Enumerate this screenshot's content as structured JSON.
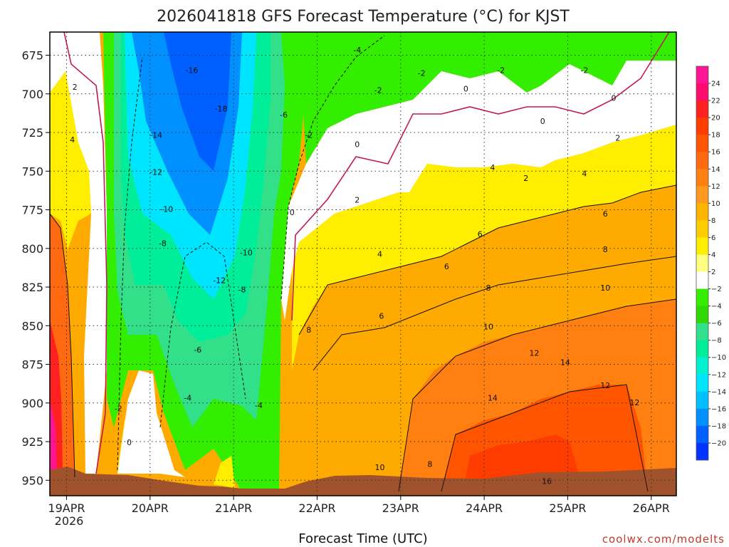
{
  "chart_data": {
    "type": "heatmap",
    "title": "2026041818 GFS Forecast Temperature (°C) for KJST",
    "xlabel": "Forecast Time (UTC)",
    "ylabel": "",
    "credit": "coolwx.com/modelts",
    "x_ticks": [
      "19APR",
      "20APR",
      "21APR",
      "22APR",
      "23APR",
      "24APR",
      "25APR",
      "26APR"
    ],
    "x_year": "2026",
    "y_ticks": [
      675,
      700,
      725,
      750,
      775,
      800,
      825,
      850,
      875,
      900,
      925,
      950
    ],
    "y_range_hPa": [
      660,
      960
    ],
    "x_range_days": [
      -0.2,
      7.3
    ],
    "colorbar": {
      "labels": [
        "24",
        "22",
        "20",
        "18",
        "16",
        "14",
        "12",
        "10",
        "8",
        "6",
        "4",
        "2",
        "−2",
        "−4",
        "−6",
        "−8",
        "−10",
        "−12",
        "−14",
        "−16",
        "−18",
        "−20"
      ],
      "colors": [
        "#ff1493",
        "#ff0a6e",
        "#ff2020",
        "#ff3c00",
        "#ff5400",
        "#ff6a10",
        "#ff7f10",
        "#ff9a20",
        "#ffb400",
        "#ffcc00",
        "#ffee00",
        "#ffff80",
        "#ffffff",
        "#33ee00",
        "#2fd800",
        "#33e08a",
        "#00ee99",
        "#00f0d0",
        "#00e5ff",
        "#00c0ff",
        "#0090ff",
        "#0060ff",
        "#0033ff"
      ]
    },
    "contour_labels": [
      {
        "text": "2",
        "day": 0.1,
        "p": 696
      },
      {
        "text": "4",
        "day": 0.07,
        "p": 730
      },
      {
        "text": "-16",
        "day": 1.5,
        "p": 685
      },
      {
        "text": "-18",
        "day": 1.85,
        "p": 710
      },
      {
        "text": "-14",
        "day": 1.07,
        "p": 727
      },
      {
        "text": "-12",
        "day": 1.07,
        "p": 751
      },
      {
        "text": "-10",
        "day": 1.2,
        "p": 775
      },
      {
        "text": "-8",
        "day": 1.15,
        "p": 797
      },
      {
        "text": "-10",
        "day": 2.15,
        "p": 803
      },
      {
        "text": "-12",
        "day": 1.83,
        "p": 821
      },
      {
        "text": "-8",
        "day": 2.1,
        "p": 827
      },
      {
        "text": "-6",
        "day": 1.57,
        "p": 866
      },
      {
        "text": "-4",
        "day": 1.45,
        "p": 897
      },
      {
        "text": "-4",
        "day": 2.3,
        "p": 902
      },
      {
        "text": "-2",
        "day": 0.62,
        "p": 904
      },
      {
        "text": "0",
        "day": 0.75,
        "p": 926
      },
      {
        "text": "-6",
        "day": 2.6,
        "p": 714
      },
      {
        "text": "-4",
        "day": 3.48,
        "p": 672
      },
      {
        "text": "-2",
        "day": 2.9,
        "p": 727
      },
      {
        "text": "-2",
        "day": 3.73,
        "p": 698
      },
      {
        "text": "0",
        "day": 3.48,
        "p": 733
      },
      {
        "text": "0",
        "day": 2.7,
        "p": 777
      },
      {
        "text": "2",
        "day": 3.48,
        "p": 769
      },
      {
        "text": "4",
        "day": 3.75,
        "p": 804
      },
      {
        "text": "6",
        "day": 3.77,
        "p": 844
      },
      {
        "text": "8",
        "day": 2.9,
        "p": 853
      },
      {
        "text": "10",
        "day": 3.75,
        "p": 942
      },
      {
        "text": "-2",
        "day": 4.25,
        "p": 687
      },
      {
        "text": "0",
        "day": 4.78,
        "p": 697
      },
      {
        "text": "6",
        "day": 4.55,
        "p": 812
      },
      {
        "text": "6",
        "day": 4.95,
        "p": 791
      },
      {
        "text": "8",
        "day": 5.05,
        "p": 826
      },
      {
        "text": "10",
        "day": 5.05,
        "p": 851
      },
      {
        "text": "8",
        "day": 4.35,
        "p": 940
      },
      {
        "text": "12",
        "day": 5.6,
        "p": 868
      },
      {
        "text": "14",
        "day": 5.97,
        "p": 874
      },
      {
        "text": "14",
        "day": 5.1,
        "p": 897
      },
      {
        "text": "16",
        "day": 5.75,
        "p": 951
      },
      {
        "text": "-2",
        "day": 5.2,
        "p": 685
      },
      {
        "text": "-2",
        "day": 6.2,
        "p": 685
      },
      {
        "text": "2",
        "day": 5.5,
        "p": 755
      },
      {
        "text": "4",
        "day": 5.1,
        "p": 748
      },
      {
        "text": "4",
        "day": 6.2,
        "p": 752
      },
      {
        "text": "0",
        "day": 5.7,
        "p": 718
      },
      {
        "text": "0",
        "day": 6.55,
        "p": 703
      },
      {
        "text": "2",
        "day": 6.6,
        "p": 729
      },
      {
        "text": "6",
        "day": 6.45,
        "p": 778
      },
      {
        "text": "8",
        "day": 6.45,
        "p": 801
      },
      {
        "text": "10",
        "day": 6.45,
        "p": 826
      },
      {
        "text": "12",
        "day": 6.45,
        "p": 889
      },
      {
        "text": "12",
        "day": 6.8,
        "p": 900
      }
    ]
  }
}
